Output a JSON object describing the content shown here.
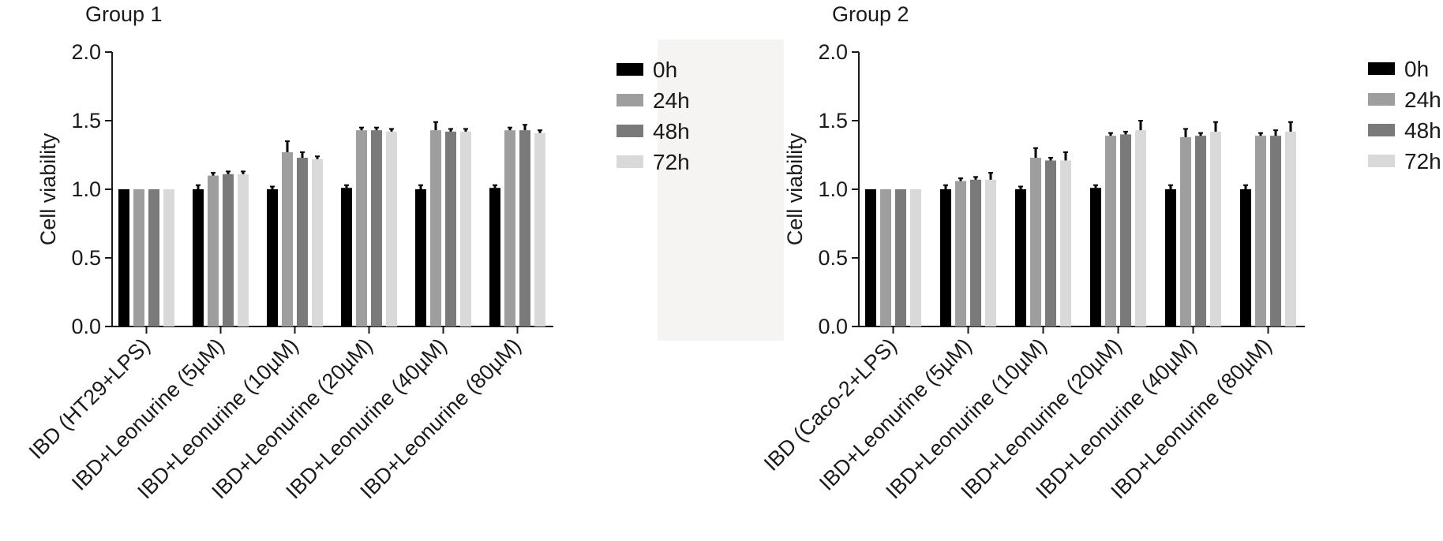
{
  "figure": {
    "series_colors": {
      "0h": "#000000",
      "24h": "#9e9e9e",
      "48h": "#7a7a7a",
      "72h": "#d9d9d9"
    },
    "divider_color": "#f6f4f2"
  },
  "chart_data": [
    {
      "type": "bar",
      "title": "Group 1",
      "ylabel": "Cell viability",
      "xlabel": "",
      "ylim": [
        0,
        2.0
      ],
      "yticks": [
        "0.0",
        "0.5",
        "1.0",
        "1.5",
        "2.0"
      ],
      "categories": [
        "IBD (HT29+LPS)",
        "IBD+Leonurine (5µM)",
        "IBD+Leonurine (10µM)",
        "IBD+Leonurine (20µM)",
        "IBD+Leonurine (40µM)",
        "IBD+Leonurine (80µM)"
      ],
      "legend": [
        "0h",
        "24h",
        "48h",
        "72h"
      ],
      "series": [
        {
          "name": "0h",
          "values": [
            1.0,
            1.0,
            1.0,
            1.01,
            1.0,
            1.01
          ],
          "errors": [
            0,
            0.03,
            0.02,
            0.02,
            0.03,
            0.02
          ]
        },
        {
          "name": "24h",
          "values": [
            1.0,
            1.1,
            1.27,
            1.43,
            1.43,
            1.43
          ],
          "errors": [
            0,
            0.02,
            0.08,
            0.02,
            0.06,
            0.02
          ]
        },
        {
          "name": "48h",
          "values": [
            1.0,
            1.11,
            1.23,
            1.43,
            1.42,
            1.43
          ],
          "errors": [
            0,
            0.02,
            0.04,
            0.02,
            0.02,
            0.04
          ]
        },
        {
          "name": "72h",
          "values": [
            1.0,
            1.11,
            1.22,
            1.42,
            1.42,
            1.41
          ],
          "errors": [
            0,
            0.02,
            0.02,
            0.02,
            0.02,
            0.02
          ]
        }
      ]
    },
    {
      "type": "bar",
      "title": "Group 2",
      "ylabel": "Cell viability",
      "xlabel": "",
      "ylim": [
        0,
        2.0
      ],
      "yticks": [
        "0.0",
        "0.5",
        "1.0",
        "1.5",
        "2.0"
      ],
      "categories": [
        "IBD (Caco-2+LPS)",
        "IBD+Leonurine (5µM)",
        "IBD+Leonurine (10µM)",
        "IBD+Leonurine (20µM)",
        "IBD+Leonurine (40µM)",
        "IBD+Leonurine (80µM)"
      ],
      "legend": [
        "0h",
        "24h",
        "48h",
        "72h"
      ],
      "series": [
        {
          "name": "0h",
          "values": [
            1.0,
            1.0,
            1.0,
            1.01,
            1.0,
            1.0
          ],
          "errors": [
            0,
            0.03,
            0.02,
            0.02,
            0.03,
            0.03
          ]
        },
        {
          "name": "24h",
          "values": [
            1.0,
            1.06,
            1.23,
            1.39,
            1.38,
            1.39
          ],
          "errors": [
            0,
            0.02,
            0.07,
            0.02,
            0.06,
            0.02
          ]
        },
        {
          "name": "48h",
          "values": [
            1.0,
            1.07,
            1.21,
            1.4,
            1.39,
            1.39
          ],
          "errors": [
            0,
            0.02,
            0.02,
            0.02,
            0.02,
            0.04
          ]
        },
        {
          "name": "72h",
          "values": [
            1.0,
            1.07,
            1.21,
            1.43,
            1.42,
            1.42
          ],
          "errors": [
            0,
            0.05,
            0.06,
            0.07,
            0.07,
            0.07
          ]
        }
      ]
    }
  ]
}
